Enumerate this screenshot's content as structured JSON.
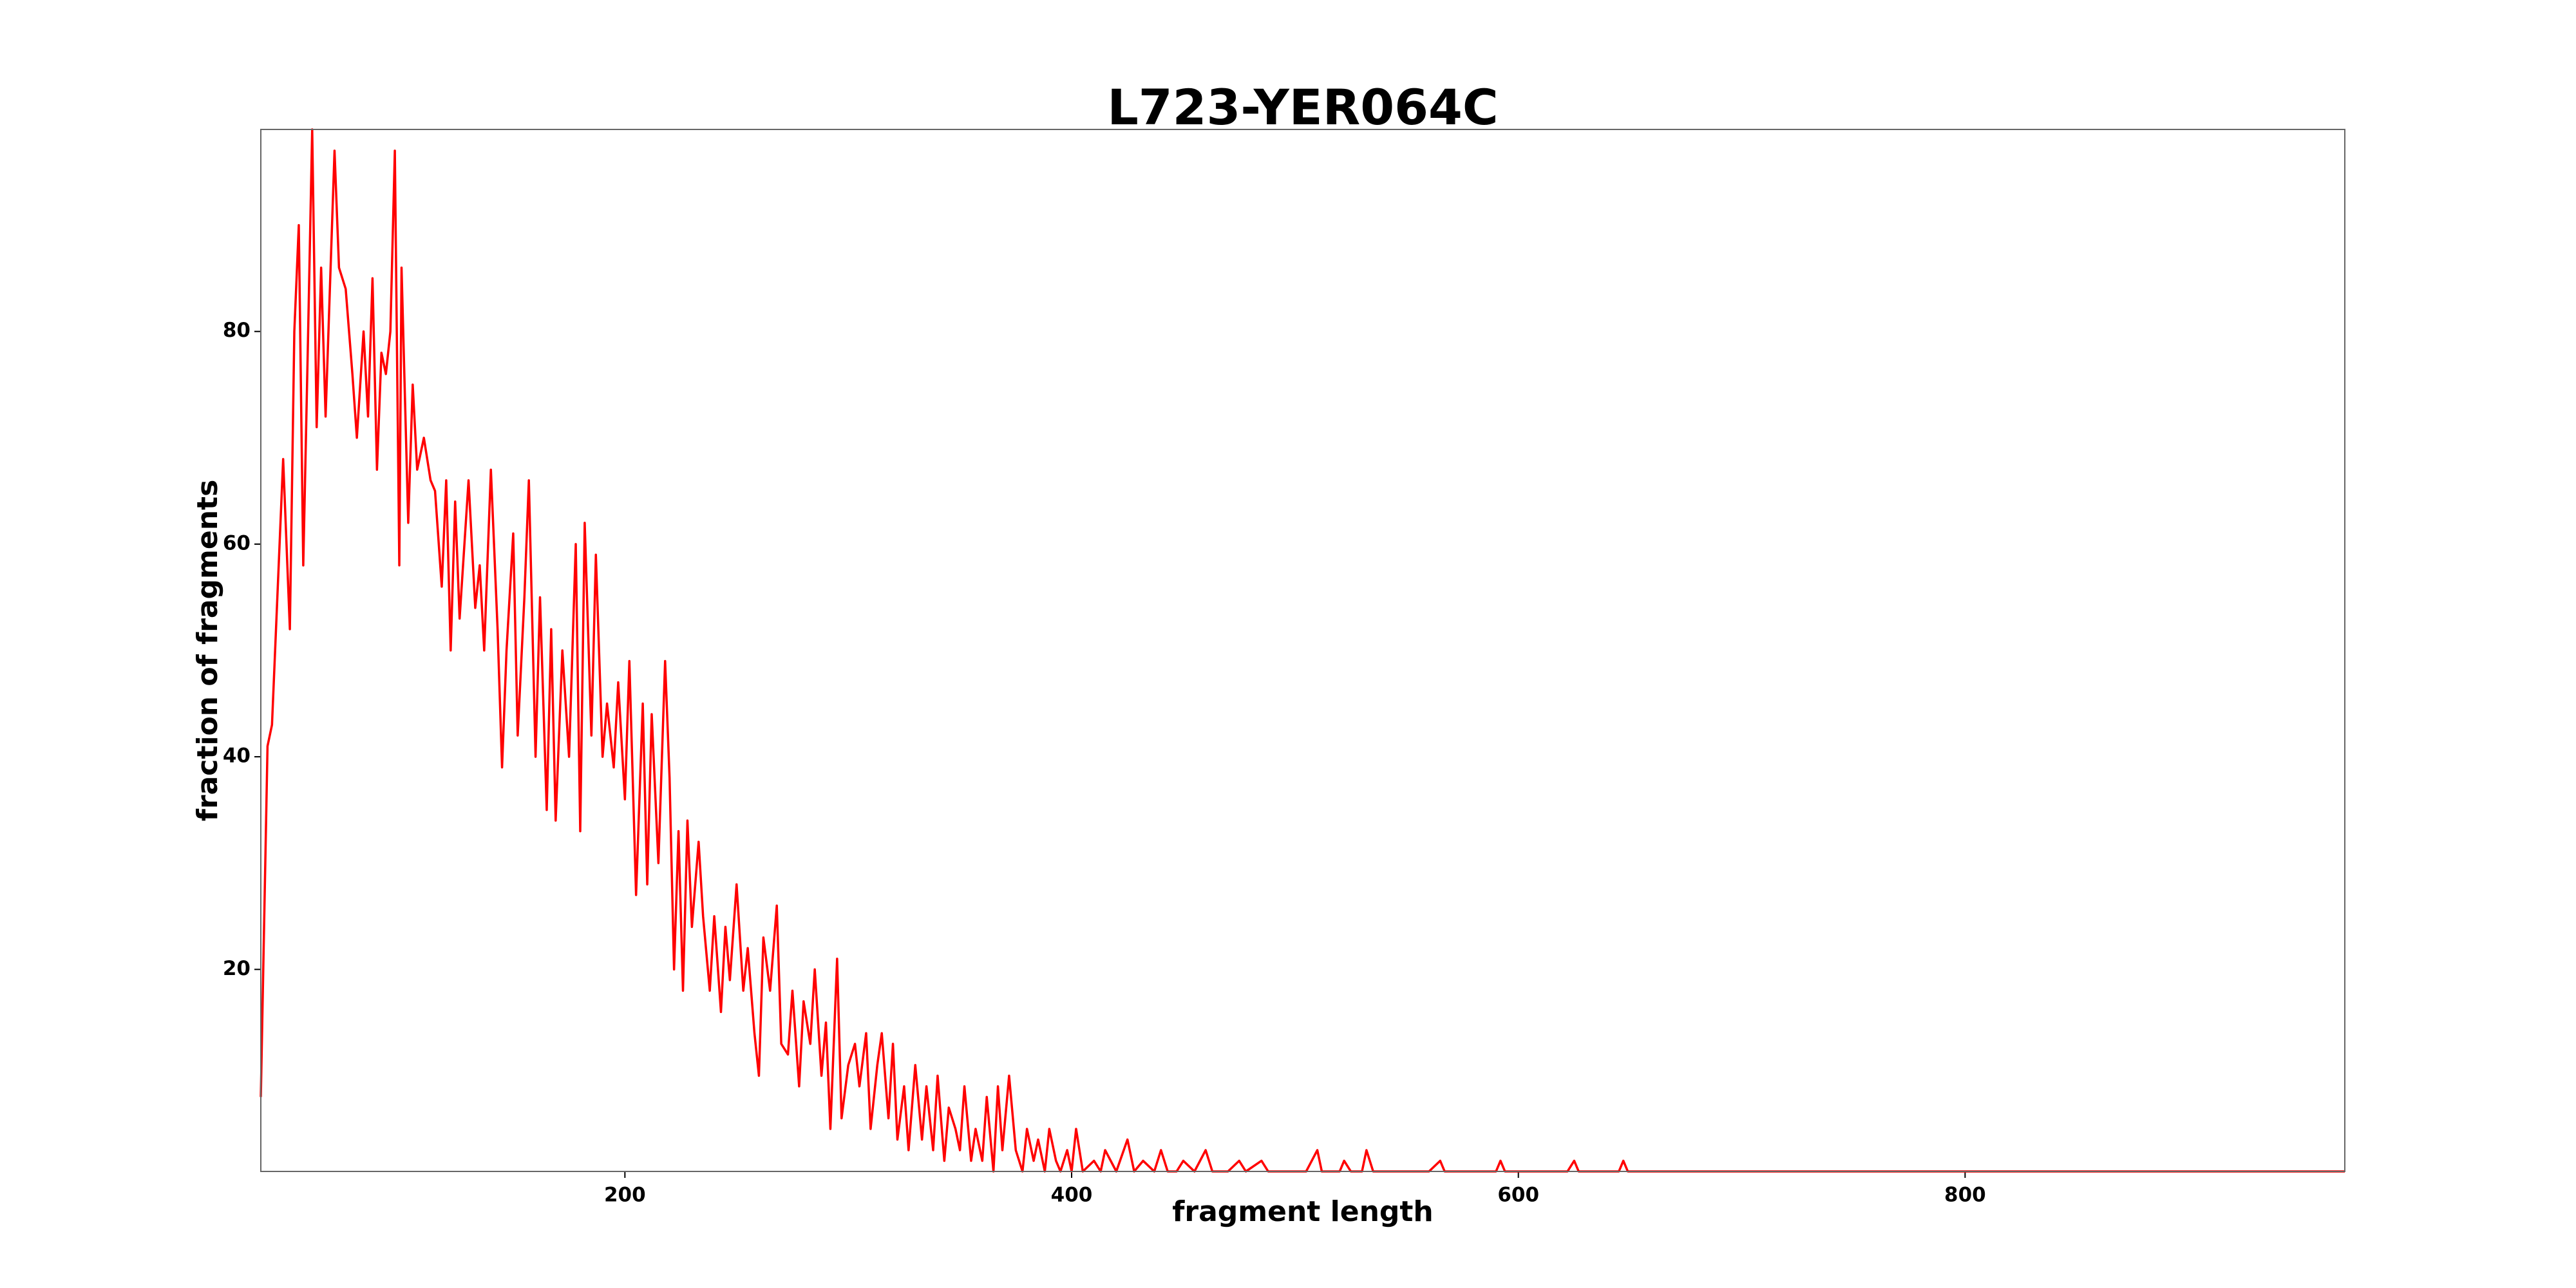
{
  "chart_data": {
    "type": "line",
    "title": "L723-YER064C",
    "xlabel": "fragment length",
    "ylabel": "fraction of fragments",
    "xlim": [
      37,
      970
    ],
    "ylim": [
      1,
      99
    ],
    "xticks": [
      200,
      400,
      600,
      800
    ],
    "yticks": [
      20,
      40,
      60,
      80
    ],
    "grid": false,
    "series": [
      {
        "color": "#ff0000",
        "x": [
          37,
          40,
          42,
          45,
          47,
          50,
          52,
          54,
          56,
          58,
          60,
          62,
          64,
          66,
          70,
          72,
          75,
          78,
          80,
          83,
          85,
          87,
          89,
          91,
          93,
          95,
          97,
          99,
          100,
          103,
          105,
          107,
          110,
          113,
          115,
          118,
          120,
          122,
          124,
          126,
          130,
          133,
          135,
          137,
          140,
          143,
          145,
          147,
          150,
          152,
          155,
          157,
          160,
          162,
          165,
          167,
          169,
          172,
          175,
          178,
          180,
          182,
          185,
          187,
          190,
          192,
          195,
          197,
          200,
          202,
          205,
          208,
          210,
          212,
          215,
          218,
          220,
          222,
          224,
          226,
          228,
          230,
          233,
          235,
          238,
          240,
          243,
          245,
          247,
          250,
          253,
          255,
          258,
          260,
          262,
          265,
          268,
          270,
          273,
          275,
          278,
          280,
          283,
          285,
          288,
          290,
          292,
          295,
          297,
          300,
          303,
          305,
          308,
          310,
          313,
          315,
          318,
          320,
          322,
          325,
          327,
          330,
          333,
          335,
          338,
          340,
          343,
          345,
          348,
          350,
          352,
          355,
          357,
          360,
          362,
          365,
          367,
          369,
          372,
          375,
          378,
          380,
          383,
          385,
          388,
          390,
          393,
          395,
          398,
          400,
          402,
          405,
          410,
          413,
          415,
          420,
          425,
          428,
          432,
          437,
          440,
          443,
          447,
          450,
          455,
          460,
          463,
          470,
          475,
          478,
          485,
          488,
          500,
          505,
          510,
          512,
          520,
          522,
          525,
          530,
          532,
          535,
          560,
          565,
          567,
          590,
          592,
          594,
          622,
          625,
          627,
          645,
          647,
          649,
          970
        ],
        "values": [
          8,
          41,
          43,
          58,
          68,
          52,
          80,
          90,
          58,
          78,
          99,
          71,
          86,
          72,
          97,
          86,
          84,
          76,
          70,
          80,
          72,
          85,
          67,
          78,
          76,
          80,
          97,
          58,
          86,
          62,
          75,
          67,
          70,
          66,
          65,
          56,
          66,
          50,
          64,
          53,
          66,
          54,
          58,
          50,
          67,
          52,
          39,
          50,
          61,
          42,
          55,
          66,
          40,
          55,
          35,
          52,
          34,
          50,
          40,
          60,
          33,
          62,
          42,
          59,
          40,
          45,
          39,
          47,
          36,
          49,
          27,
          45,
          28,
          44,
          30,
          49,
          38,
          20,
          33,
          18,
          34,
          24,
          32,
          25,
          18,
          25,
          16,
          24,
          19,
          28,
          18,
          22,
          14,
          10,
          23,
          18,
          26,
          13,
          12,
          18,
          9,
          17,
          13,
          20,
          10,
          15,
          5,
          21,
          6,
          11,
          13,
          9,
          14,
          5,
          11,
          14,
          6,
          13,
          4,
          9,
          3,
          11,
          4,
          9,
          3,
          10,
          2,
          7,
          5,
          3,
          9,
          2,
          5,
          2,
          8,
          1,
          9,
          3,
          10,
          3,
          1,
          5,
          2,
          4,
          1,
          5,
          2,
          1,
          3,
          1,
          5,
          1,
          2,
          1,
          3,
          1,
          4,
          1,
          2,
          1,
          3,
          1,
          1,
          2,
          1,
          3,
          1,
          1,
          2,
          1,
          2,
          1,
          1,
          1,
          3,
          1,
          1,
          2,
          1,
          1,
          3,
          1,
          1,
          2,
          1,
          1,
          2,
          1,
          1,
          2,
          1,
          1,
          2,
          1,
          1
        ]
      }
    ]
  }
}
